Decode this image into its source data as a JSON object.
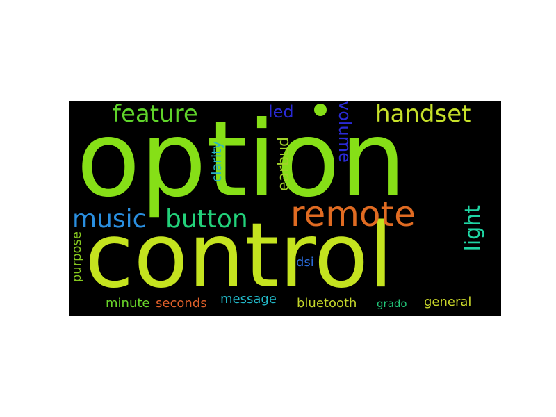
{
  "background": "#000000",
  "words": [
    {
      "id": "option",
      "text": "option",
      "color": "#86df17"
    },
    {
      "id": "control",
      "text": "control",
      "color": "#c4e31f"
    },
    {
      "id": "remote",
      "text": "remote",
      "color": "#e06b22"
    },
    {
      "id": "feature",
      "text": "feature",
      "color": "#5fd42a"
    },
    {
      "id": "handset",
      "text": "handset",
      "color": "#c7e12a"
    },
    {
      "id": "music",
      "text": "music",
      "color": "#2a8fe0"
    },
    {
      "id": "button",
      "text": "button",
      "color": "#22d17a"
    },
    {
      "id": "volume",
      "text": "volume",
      "color": "#2a2ad6"
    },
    {
      "id": "led",
      "text": "led",
      "color": "#2a2ad6"
    },
    {
      "id": "earbud",
      "text": "earbud",
      "color": "#a0d22a"
    },
    {
      "id": "clarity",
      "text": "clarity",
      "color": "#2ab4c8"
    },
    {
      "id": "light",
      "text": "light",
      "color": "#1fd6a4"
    },
    {
      "id": "purpose",
      "text": "purpose",
      "color": "#86c81f"
    },
    {
      "id": "dsi",
      "text": "dsi",
      "color": "#2a6ad6"
    },
    {
      "id": "minute",
      "text": "minute",
      "color": "#6ad62a"
    },
    {
      "id": "seconds",
      "text": "seconds",
      "color": "#e0602a"
    },
    {
      "id": "message",
      "text": "message",
      "color": "#22b8c8"
    },
    {
      "id": "bluetooth",
      "text": "bluetooth",
      "color": "#c4d62a"
    },
    {
      "id": "grado",
      "text": "grado",
      "color": "#22c87a"
    },
    {
      "id": "general",
      "text": "general",
      "color": "#c8d62a"
    }
  ]
}
